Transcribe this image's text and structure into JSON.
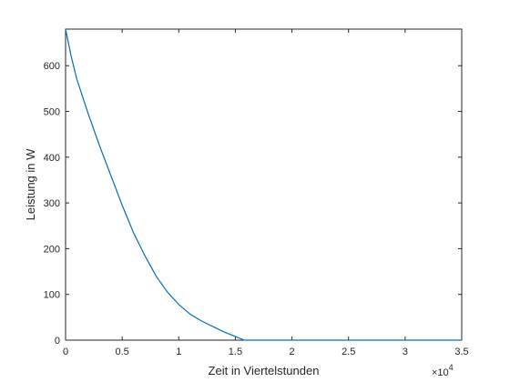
{
  "chart_data": {
    "type": "line",
    "title": "",
    "xlabel": "Zeit in Viertelstunden",
    "ylabel": "Leistung in W",
    "xlim": [
      0,
      35000
    ],
    "ylim": [
      0,
      680
    ],
    "x_ticks": [
      0,
      5000,
      10000,
      15000,
      20000,
      25000,
      30000,
      35000
    ],
    "x_tick_labels": [
      "0",
      "0.5",
      "1",
      "1.5",
      "2",
      "2.5",
      "3",
      "3.5"
    ],
    "x_exponent_label": "×10",
    "x_exponent_power": "4",
    "y_ticks": [
      0,
      100,
      200,
      300,
      400,
      500,
      600
    ],
    "y_tick_labels": [
      "0",
      "100",
      "200",
      "300",
      "400",
      "500",
      "600"
    ],
    "grid": false,
    "series": [
      {
        "color": "#0072BD",
        "x": [
          0,
          500,
          1000,
          2000,
          3000,
          4000,
          5000,
          6000,
          7000,
          8000,
          9000,
          10000,
          11000,
          12000,
          13000,
          14000,
          15000,
          15800,
          20000,
          25000,
          30000,
          35000
        ],
        "y": [
          680,
          620,
          570,
          495,
          425,
          360,
          295,
          235,
          185,
          140,
          105,
          78,
          57,
          42,
          30,
          18,
          8,
          0,
          0,
          0,
          0,
          0
        ]
      }
    ]
  }
}
